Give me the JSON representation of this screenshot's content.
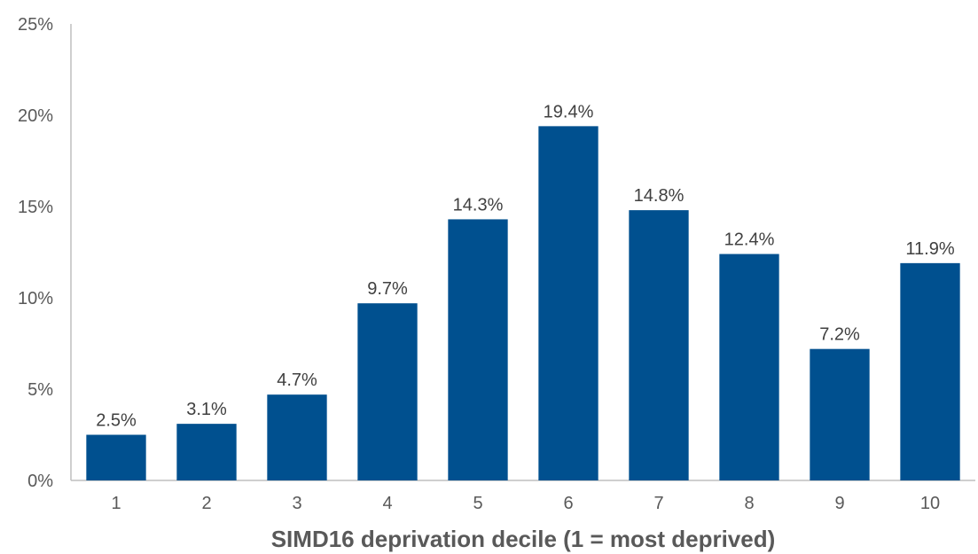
{
  "chart_data": {
    "type": "bar",
    "categories": [
      "1",
      "2",
      "3",
      "4",
      "5",
      "6",
      "7",
      "8",
      "9",
      "10"
    ],
    "values": [
      2.5,
      3.1,
      4.7,
      9.7,
      14.3,
      19.4,
      14.8,
      12.4,
      7.2,
      11.9
    ],
    "data_labels": [
      "2.5%",
      "3.1%",
      "4.7%",
      "9.7%",
      "14.3%",
      "19.4%",
      "14.8%",
      "12.4%",
      "7.2%",
      "11.9%"
    ],
    "title": "",
    "xlabel": "SIMD16 deprivation decile (1 = most deprived)",
    "ylabel": "",
    "ylim": [
      0,
      25
    ],
    "yticks": [
      0,
      5,
      10,
      15,
      20,
      25
    ],
    "ytick_labels": [
      "0%",
      "5%",
      "10%",
      "15%",
      "20%",
      "25%"
    ],
    "grid": false,
    "legend": "none",
    "colors": {
      "bar": "#00508f",
      "axis": "#bfbfbf"
    }
  }
}
